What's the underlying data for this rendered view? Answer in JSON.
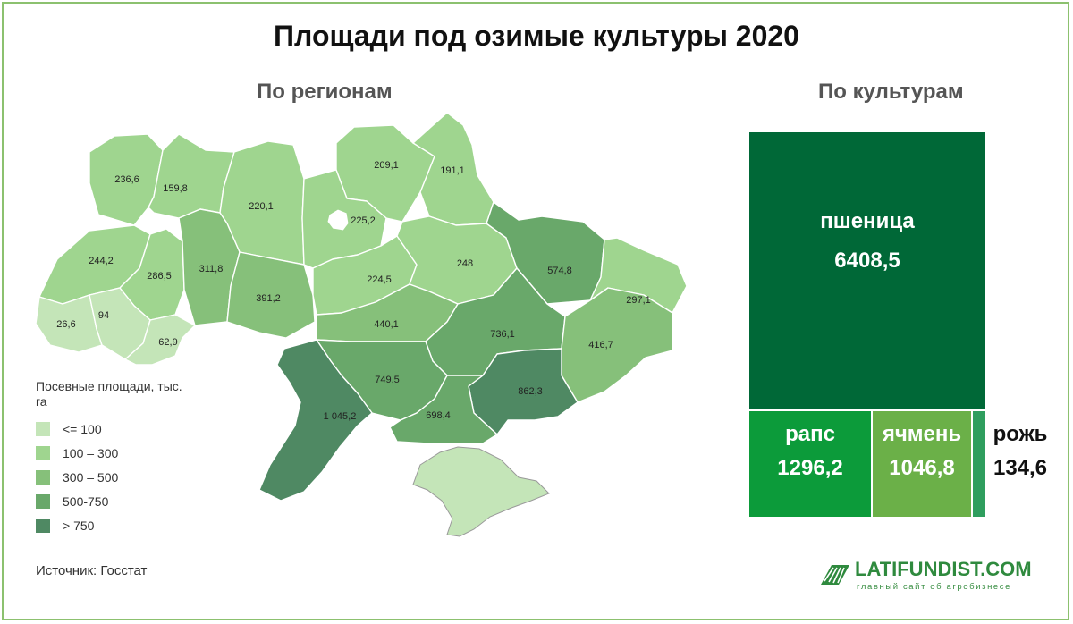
{
  "title": "Площади под озимые культуры 2020",
  "subtitle_left": "По регионам",
  "subtitle_right": "По культурам",
  "legend_title": "Посевные площади, тыс. га",
  "legend": [
    {
      "label": "<= 100",
      "color": "#c4e5b8"
    },
    {
      "label": "100 – 300",
      "color": "#9fd58f"
    },
    {
      "label": "300 – 500",
      "color": "#86c07a"
    },
    {
      "label": "500-750",
      "color": "#69a86a"
    },
    {
      "label": "> 750",
      "color": "#4f8963"
    }
  ],
  "source": "Источник:  Госстат",
  "logo": {
    "name": "LATIFUNDIST.COM",
    "tagline": "главный сайт об агробизнесе"
  },
  "chart_data": [
    {
      "type": "choropleth",
      "unit": "тыс. га",
      "regions": [
        {
          "value": "236,6",
          "color": "#9fd58f"
        },
        {
          "value": "159,8",
          "color": "#9fd58f"
        },
        {
          "value": "220,1",
          "color": "#9fd58f"
        },
        {
          "value": "209,1",
          "color": "#9fd58f"
        },
        {
          "value": "191,1",
          "color": "#9fd58f"
        },
        {
          "value": "225,2",
          "color": "#9fd58f"
        },
        {
          "value": "244,2",
          "color": "#9fd58f"
        },
        {
          "value": "286,5",
          "color": "#9fd58f"
        },
        {
          "value": "311,8",
          "color": "#86c07a"
        },
        {
          "value": "391,2",
          "color": "#86c07a"
        },
        {
          "value": "224,5",
          "color": "#9fd58f"
        },
        {
          "value": "248",
          "color": "#9fd58f"
        },
        {
          "value": "574,8",
          "color": "#69a86a"
        },
        {
          "value": "297,1",
          "color": "#9fd58f"
        },
        {
          "value": "26,6",
          "color": "#c4e5b8"
        },
        {
          "value": "94",
          "color": "#c4e5b8"
        },
        {
          "value": "62,9",
          "color": "#c4e5b8"
        },
        {
          "value": "440,1",
          "color": "#86c07a"
        },
        {
          "value": "736,1",
          "color": "#69a86a"
        },
        {
          "value": "416,7",
          "color": "#86c07a"
        },
        {
          "value": "749,5",
          "color": "#69a86a"
        },
        {
          "value": "862,3",
          "color": "#4f8963"
        },
        {
          "value": "1 045,2",
          "color": "#4f8963"
        },
        {
          "value": "698,4",
          "color": "#69a86a"
        }
      ],
      "crimea_color": "#c4e5b8"
    },
    {
      "type": "treemap",
      "unit": "тыс. га",
      "items": [
        {
          "name": "пшеница",
          "value": 6408.5,
          "label": "6408,5",
          "color": "#006837"
        },
        {
          "name": "рапс",
          "value": 1296.2,
          "label": "1296,2",
          "color": "#0c9b3a"
        },
        {
          "name": "ячмень",
          "value": 1046.8,
          "label": "1046,8",
          "color": "#6bb048"
        },
        {
          "name": "рожь",
          "value": 134.6,
          "label": "134,6",
          "color": "#2f9e5e"
        }
      ]
    }
  ]
}
